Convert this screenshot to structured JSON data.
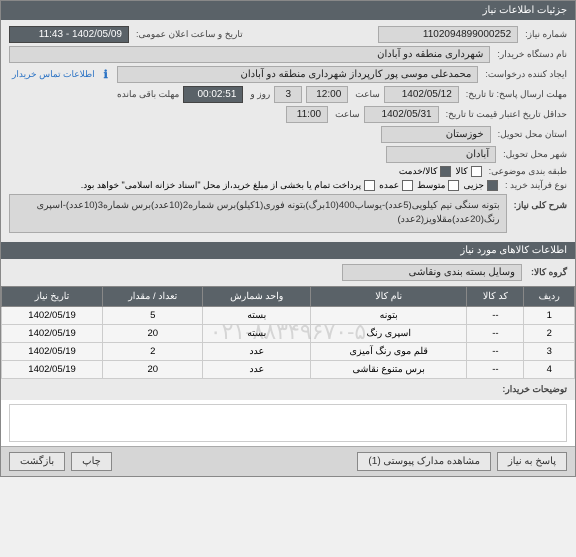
{
  "header": {
    "title": "جزئیات اطلاعات نیاز"
  },
  "fields": {
    "niaz_no_lbl": "شماره نیاز:",
    "niaz_no": "1102094899000252",
    "announce_lbl": "تاریخ و ساعت اعلان عمومی:",
    "announce_val": "1402/05/09 - 11:43",
    "buyer_lbl": "نام دستگاه خریدار:",
    "buyer_val": "شهرداری منطقه دو آبادان",
    "creator_lbl": "ایجاد کننده درخواست:",
    "creator_val": "محمدعلی موسی پور کارپرداز شهرداری منطقه دو آبادان",
    "contact_info_lbl": "اطلاعات تماس خریدار",
    "deadline_lbl": "مهلت ارسال پاسخ: تا تاریخ:",
    "deadline_date": "1402/05/12",
    "time_lbl": "ساعت",
    "deadline_time": "12:00",
    "days_left": "3",
    "day_hour_lbl": "روز و",
    "remaining_time": "00:02:51",
    "min_remain_lbl": "مهلت باقی مانده",
    "validity_lbl": "حداقل تاریخ اعتبار قیمت تا تاریخ:",
    "validity_date": "1402/05/31",
    "validity_time": "11:00",
    "province_lbl": "استان محل تحویل:",
    "province": "خوزستان",
    "city_lbl": "شهر محل تحویل:",
    "city": "آبادان",
    "category_lbl": "طبقه بندی موضوعی:",
    "cat_goods": "کالا",
    "cat_service": "کالا/خدمت",
    "purchase_type_lbl": "نوع فرآیند خرید :",
    "pt1": "جزیی",
    "pt2": "متوسط",
    "pt3": "عمده",
    "payment_note": "پرداخت تمام یا بخشی از مبلغ خرید،از محل \"اسناد خزانه اسلامی\" خواهد بود.",
    "desc_lbl": "شرح کلی نیاز:",
    "desc_text": "بتونه سنگی نیم کیلویی(5عدد)-یوساب400(10برگ)بتونه فوری(1کیلو)برس شماره2(10عدد)برس شماره3(10عدد)-اسپری رنگ(20عدد)مقلاویز(2عدد)"
  },
  "section2_title": "اطلاعات کالاهای مورد نیاز",
  "group_lbl": "گروه کالا:",
  "group_val": "وسایل بسته بندی  ونقاشی",
  "table": {
    "headers": [
      "ردیف",
      "کد کالا",
      "نام کالا",
      "واحد شمارش",
      "تعداد / مقدار",
      "تاریخ نیاز"
    ],
    "rows": [
      [
        "1",
        "--",
        "بتونه",
        "بسته",
        "5",
        "1402/05/19"
      ],
      [
        "2",
        "--",
        "اسپری رنگ",
        "بسته",
        "20",
        "1402/05/19"
      ],
      [
        "3",
        "--",
        "قلم موی رنگ آمیزی",
        "عدد",
        "2",
        "1402/05/19"
      ],
      [
        "4",
        "--",
        "برس متنوع نقاشی",
        "عدد",
        "20",
        "1402/05/19"
      ]
    ]
  },
  "watermark": "۰۲۱-۸۸۳۴۹۶۷۰-۵",
  "buyer_notes_lbl": "توضیحات خریدار:",
  "buttons": {
    "reply": "پاسخ به نیاز",
    "attachments": "مشاهده مدارک پیوستی (1)",
    "print": "چاپ",
    "back": "بازگشت"
  }
}
